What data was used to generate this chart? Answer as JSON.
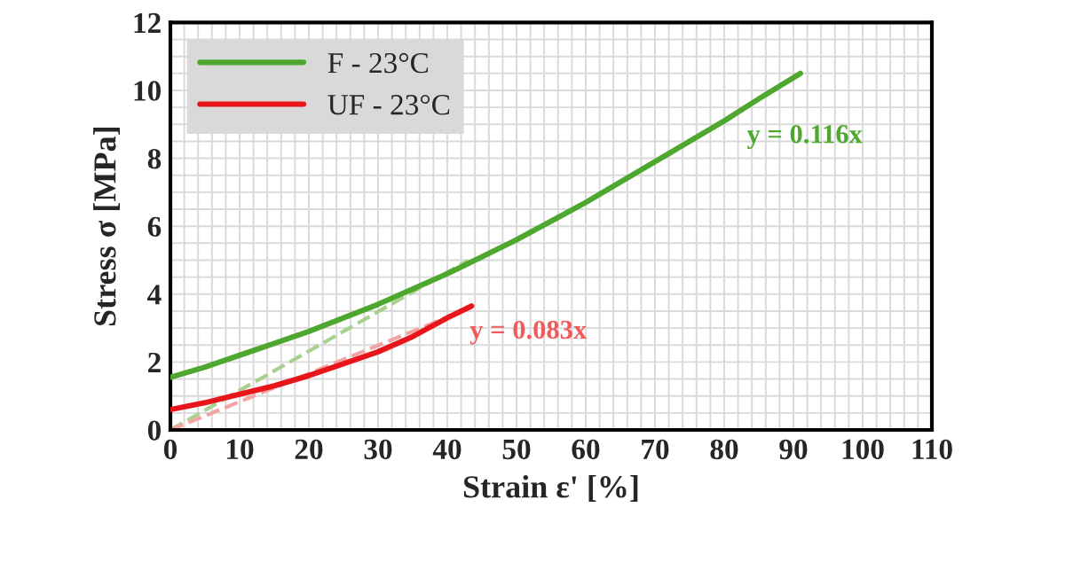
{
  "chart_data": {
    "type": "line",
    "xlabel": "Strain ε' [%]",
    "ylabel": "Stress σ [MPa]",
    "xlim": [
      0,
      110
    ],
    "xticks": [
      0,
      10,
      20,
      30,
      40,
      50,
      60,
      70,
      80,
      90,
      100,
      110
    ],
    "ylim": [
      0,
      12
    ],
    "yticks": [
      0,
      2,
      4,
      6,
      8,
      10,
      12
    ],
    "grid": true,
    "legend": "top left",
    "series": [
      {
        "name": "F - 23°C",
        "color": "#4ea72e",
        "x": [
          0,
          5,
          10,
          15,
          20,
          25,
          30,
          35,
          40,
          45,
          50,
          55,
          60,
          65,
          70,
          75,
          80,
          85,
          91
        ],
        "values": [
          1.55,
          1.85,
          2.2,
          2.55,
          2.9,
          3.3,
          3.7,
          4.15,
          4.6,
          5.1,
          5.6,
          6.15,
          6.7,
          7.3,
          7.9,
          8.5,
          9.1,
          9.75,
          10.5
        ]
      },
      {
        "name": "UF - 23°C",
        "color": "#e8151b",
        "x": [
          0,
          5,
          10,
          15,
          20,
          25,
          30,
          35,
          40,
          43.5
        ],
        "values": [
          0.6,
          0.8,
          1.05,
          1.3,
          1.6,
          1.95,
          2.3,
          2.75,
          3.3,
          3.65
        ]
      },
      {
        "color": "#a9d18e",
        "line_style": "dashed",
        "x": [
          0,
          43
        ],
        "values": [
          0,
          4.99
        ]
      },
      {
        "color": "#f4a3a3",
        "line_style": "dashed",
        "x": [
          0,
          43.5
        ],
        "values": [
          0,
          3.61
        ]
      }
    ],
    "annotations": [
      "y = 0.116x",
      "y = 0.083x"
    ]
  }
}
